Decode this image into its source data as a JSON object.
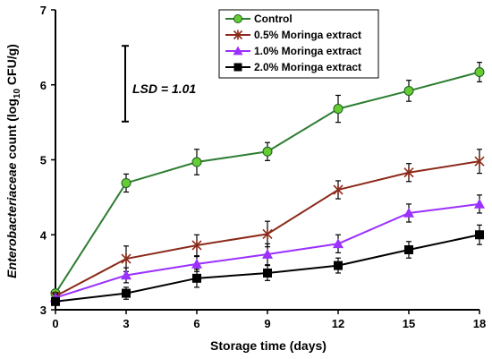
{
  "chart_data": {
    "type": "line",
    "x": [
      0,
      3,
      6,
      9,
      12,
      15,
      18
    ],
    "xlim": [
      0,
      18
    ],
    "ylim": [
      3,
      7
    ],
    "xticks": [
      "0",
      "3",
      "6",
      "9",
      "12",
      "15",
      "18"
    ],
    "yticks": [
      "3",
      "4",
      "5",
      "6",
      "7"
    ],
    "xlabel": "Storage time (days)",
    "ylabel_prefix_italic": "Enterobacteriaceae",
    "ylabel_rest": " count (log",
    "ylabel_sub": "10",
    "ylabel_end": " CFU/g)",
    "annotation": "LSD = 1.01",
    "lsd_value": 1.01,
    "grid": false,
    "legend_position": "top-right",
    "series": [
      {
        "name": "Control",
        "color": "#2e7d32",
        "marker": "circle",
        "marker_color": "#66cc33",
        "values": [
          3.22,
          4.69,
          4.97,
          5.11,
          5.68,
          5.92,
          6.17
        ],
        "errors": [
          0.05,
          0.12,
          0.17,
          0.12,
          0.18,
          0.14,
          0.13
        ]
      },
      {
        "name": "0.5% Moringa extract",
        "color": "#8b2a1a",
        "marker": "asterisk",
        "marker_color": "#8b2a1a",
        "values": [
          3.18,
          3.68,
          3.86,
          4.01,
          4.6,
          4.83,
          4.98
        ],
        "errors": [
          0.05,
          0.17,
          0.14,
          0.17,
          0.12,
          0.12,
          0.16
        ]
      },
      {
        "name": "1.0% Moringa extract",
        "color": "#9b30ff",
        "marker": "triangle",
        "marker_color": "#9b30ff",
        "values": [
          3.16,
          3.46,
          3.61,
          3.74,
          3.88,
          4.29,
          4.41
        ],
        "errors": [
          0.05,
          0.1,
          0.1,
          0.14,
          0.12,
          0.12,
          0.12
        ]
      },
      {
        "name": "2.0% Moringa extract",
        "color": "#000000",
        "marker": "square",
        "marker_color": "#000000",
        "values": [
          3.11,
          3.22,
          3.42,
          3.49,
          3.59,
          3.8,
          4.0
        ],
        "errors": [
          0.05,
          0.08,
          0.12,
          0.1,
          0.1,
          0.11,
          0.13
        ]
      }
    ]
  }
}
